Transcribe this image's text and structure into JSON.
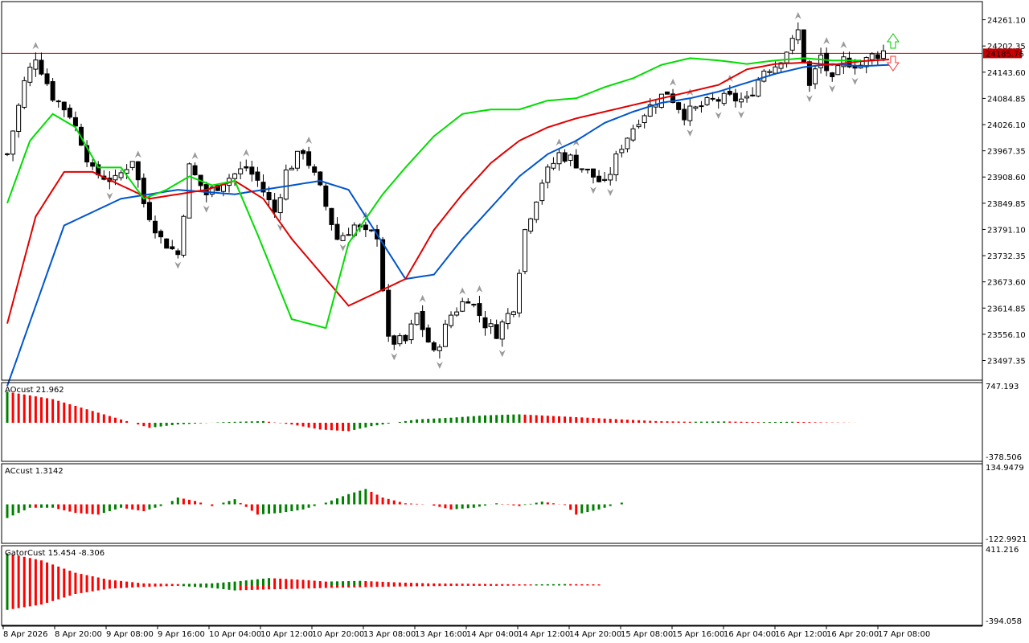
{
  "colors": {
    "bull": "#008000",
    "bear": "#ff0000",
    "jaw": "#0055cc",
    "teeth": "#e00000",
    "lips": "#00dd00",
    "price_line": "#cc0000",
    "price_label_bg": "#cc0000",
    "fractal": "#9a9a9a",
    "candle_body_bear": "#000000",
    "candle_body_bull": "#ffffff",
    "candle_border": "#000000"
  },
  "price_panel": {
    "current_price": "24185.76",
    "current_value": 24185.76,
    "y_range": [
      23455,
      24300
    ],
    "y_ticks": [
      "24261.10",
      "24202.35",
      "24143.60",
      "24084.85",
      "24026.10",
      "23967.35",
      "23908.60",
      "23849.85",
      "23791.10",
      "23732.35",
      "23673.60",
      "23614.85",
      "23556.10",
      "23497.35"
    ],
    "signals": {
      "up_arrow": "buy-signal-arrow-icon",
      "down_arrow": "sell-signal-arrow-icon"
    }
  },
  "panels": [
    {
      "label": "AOcust 21.962",
      "top_value": "747.193",
      "bottom_value": "-378.506"
    },
    {
      "label": "ACcust 1.3142",
      "top_value": "134.9479",
      "bottom_value": "-122.9921"
    },
    {
      "label": "GatorCust 15.454 -8.306",
      "top_value": "411.216",
      "bottom_value": "-394.058"
    }
  ],
  "x_axis": {
    "labels": [
      "8 Apr 2026",
      "8 Apr 20:00",
      "9 Apr 08:00",
      "9 Apr 16:00",
      "10 Apr 04:00",
      "10 Apr 12:00",
      "10 Apr 20:00",
      "13 Apr 08:00",
      "13 Apr 16:00",
      "14 Apr 04:00",
      "14 Apr 12:00",
      "14 Apr 20:00",
      "15 Apr 08:00",
      "15 Apr 16:00",
      "16 Apr 04:00",
      "16 Apr 12:00",
      "16 Apr 20:00",
      "17 Apr 08:00"
    ]
  },
  "chart_data": {
    "type": "candlestick",
    "instrument_price_axis": "price",
    "bars_count": 155,
    "anchor_closes": [
      [
        0,
        23960
      ],
      [
        3,
        24120
      ],
      [
        5,
        24180
      ],
      [
        8,
        24090
      ],
      [
        11,
        24050
      ],
      [
        13,
        23990
      ],
      [
        15,
        23920
      ],
      [
        19,
        23900
      ],
      [
        22,
        23950
      ],
      [
        24,
        23850
      ],
      [
        27,
        23770
      ],
      [
        30,
        23735
      ],
      [
        32,
        23930
      ],
      [
        35,
        23870
      ],
      [
        38,
        23900
      ],
      [
        42,
        23930
      ],
      [
        44,
        23900
      ],
      [
        47,
        23830
      ],
      [
        49,
        23920
      ],
      [
        52,
        23970
      ],
      [
        55,
        23880
      ],
      [
        58,
        23770
      ],
      [
        61,
        23800
      ],
      [
        63,
        23780
      ],
      [
        65,
        23780
      ],
      [
        67,
        23540
      ],
      [
        70,
        23540
      ],
      [
        72,
        23600
      ],
      [
        75,
        23510
      ],
      [
        78,
        23600
      ],
      [
        81,
        23640
      ],
      [
        84,
        23580
      ],
      [
        86,
        23560
      ],
      [
        89,
        23620
      ],
      [
        91,
        23790
      ],
      [
        94,
        23900
      ],
      [
        97,
        23960
      ],
      [
        99,
        23950
      ],
      [
        102,
        23920
      ],
      [
        105,
        23890
      ],
      [
        108,
        23980
      ],
      [
        111,
        24040
      ],
      [
        114,
        24080
      ],
      [
        116,
        24100
      ],
      [
        119,
        24050
      ],
      [
        121,
        24060
      ],
      [
        124,
        24080
      ],
      [
        127,
        24085
      ],
      [
        130,
        24080
      ],
      [
        133,
        24150
      ],
      [
        135,
        24160
      ],
      [
        138,
        24210
      ],
      [
        139,
        24235
      ],
      [
        141,
        24110
      ],
      [
        143,
        24180
      ],
      [
        145,
        24120
      ],
      [
        147,
        24170
      ],
      [
        150,
        24160
      ],
      [
        152,
        24180
      ],
      [
        154,
        24190
      ]
    ],
    "jaw_line": [
      [
        0,
        23440
      ],
      [
        10,
        23800
      ],
      [
        20,
        23860
      ],
      [
        30,
        23880
      ],
      [
        40,
        23870
      ],
      [
        50,
        23890
      ],
      [
        55,
        23900
      ],
      [
        60,
        23880
      ],
      [
        66,
        23760
      ],
      [
        70,
        23680
      ],
      [
        75,
        23690
      ],
      [
        80,
        23770
      ],
      [
        85,
        23840
      ],
      [
        90,
        23910
      ],
      [
        95,
        23960
      ],
      [
        100,
        23990
      ],
      [
        105,
        24030
      ],
      [
        110,
        24055
      ],
      [
        115,
        24075
      ],
      [
        120,
        24085
      ],
      [
        125,
        24100
      ],
      [
        130,
        24120
      ],
      [
        135,
        24140
      ],
      [
        140,
        24155
      ],
      [
        145,
        24162
      ],
      [
        150,
        24157
      ],
      [
        155,
        24160
      ]
    ],
    "teeth_line": [
      [
        0,
        23580
      ],
      [
        5,
        23820
      ],
      [
        10,
        23920
      ],
      [
        15,
        23920
      ],
      [
        20,
        23890
      ],
      [
        25,
        23860
      ],
      [
        30,
        23870
      ],
      [
        35,
        23880
      ],
      [
        40,
        23900
      ],
      [
        45,
        23860
      ],
      [
        50,
        23770
      ],
      [
        60,
        23620
      ],
      [
        70,
        23680
      ],
      [
        75,
        23790
      ],
      [
        80,
        23870
      ],
      [
        85,
        23940
      ],
      [
        90,
        23990
      ],
      [
        95,
        24020
      ],
      [
        100,
        24040
      ],
      [
        105,
        24055
      ],
      [
        110,
        24070
      ],
      [
        115,
        24085
      ],
      [
        120,
        24100
      ],
      [
        125,
        24115
      ],
      [
        130,
        24150
      ],
      [
        135,
        24162
      ],
      [
        140,
        24165
      ],
      [
        145,
        24160
      ],
      [
        150,
        24168
      ],
      [
        155,
        24172
      ]
    ],
    "lips_line": [
      [
        0,
        23850
      ],
      [
        4,
        23990
      ],
      [
        8,
        24050
      ],
      [
        12,
        24020
      ],
      [
        16,
        23930
      ],
      [
        20,
        23930
      ],
      [
        24,
        23860
      ],
      [
        28,
        23880
      ],
      [
        32,
        23910
      ],
      [
        36,
        23890
      ],
      [
        40,
        23900
      ],
      [
        44,
        23780
      ],
      [
        50,
        23590
      ],
      [
        56,
        23570
      ],
      [
        60,
        23760
      ],
      [
        66,
        23870
      ],
      [
        70,
        23930
      ],
      [
        75,
        24000
      ],
      [
        80,
        24050
      ],
      [
        85,
        24060
      ],
      [
        90,
        24060
      ],
      [
        95,
        24080
      ],
      [
        100,
        24085
      ],
      [
        105,
        24110
      ],
      [
        110,
        24130
      ],
      [
        115,
        24160
      ],
      [
        120,
        24175
      ],
      [
        125,
        24170
      ],
      [
        130,
        24162
      ],
      [
        135,
        24170
      ],
      [
        140,
        24175
      ],
      [
        145,
        24170
      ],
      [
        150,
        24170
      ]
    ],
    "ao_histogram": [
      [
        0,
        0.92
      ],
      [
        8,
        0.7
      ],
      [
        15,
        0.35
      ],
      [
        20,
        0.1
      ],
      [
        25,
        -0.15
      ],
      [
        30,
        -0.05
      ],
      [
        38,
        0.02
      ],
      [
        45,
        0.05
      ],
      [
        50,
        -0.05
      ],
      [
        55,
        -0.2
      ],
      [
        60,
        -0.25
      ],
      [
        64,
        -0.1
      ],
      [
        68,
        0.0
      ],
      [
        72,
        0.1
      ],
      [
        78,
        0.15
      ],
      [
        84,
        0.22
      ],
      [
        90,
        0.25
      ],
      [
        96,
        0.2
      ],
      [
        102,
        0.15
      ],
      [
        108,
        0.1
      ],
      [
        114,
        0.05
      ],
      [
        120,
        0.03
      ],
      [
        126,
        0.04
      ],
      [
        132,
        0.02
      ],
      [
        138,
        0.03
      ],
      [
        144,
        0.01
      ],
      [
        150,
        0.0
      ]
    ],
    "ac_histogram": [
      [
        0,
        -0.4
      ],
      [
        4,
        -0.1
      ],
      [
        8,
        -0.1
      ],
      [
        12,
        -0.25
      ],
      [
        16,
        -0.3
      ],
      [
        20,
        -0.1
      ],
      [
        24,
        -0.2
      ],
      [
        28,
        0.0
      ],
      [
        30,
        0.2
      ],
      [
        33,
        0.1
      ],
      [
        36,
        -0.05
      ],
      [
        40,
        0.15
      ],
      [
        44,
        -0.3
      ],
      [
        48,
        -0.25
      ],
      [
        52,
        -0.15
      ],
      [
        56,
        0.05
      ],
      [
        60,
        0.3
      ],
      [
        63,
        0.45
      ],
      [
        66,
        0.2
      ],
      [
        70,
        0.03
      ],
      [
        74,
        0.0
      ],
      [
        78,
        -0.15
      ],
      [
        82,
        -0.1
      ],
      [
        86,
        0.03
      ],
      [
        90,
        -0.05
      ],
      [
        94,
        0.08
      ],
      [
        98,
        -0.02
      ],
      [
        100,
        -0.3
      ],
      [
        104,
        -0.15
      ],
      [
        108,
        0.05
      ]
    ],
    "gator_upper": [
      [
        0,
        0.9
      ],
      [
        6,
        0.7
      ],
      [
        12,
        0.35
      ],
      [
        18,
        0.15
      ],
      [
        24,
        0.05
      ],
      [
        30,
        0.03
      ],
      [
        36,
        0.05
      ],
      [
        40,
        0.1
      ],
      [
        46,
        0.2
      ],
      [
        52,
        0.15
      ],
      [
        56,
        0.1
      ],
      [
        62,
        0.12
      ],
      [
        68,
        0.08
      ],
      [
        74,
        0.05
      ],
      [
        80,
        0.04
      ],
      [
        86,
        0.03
      ],
      [
        92,
        0.02
      ],
      [
        98,
        0.03
      ],
      [
        104,
        0.02
      ]
    ],
    "gator_lower": [
      [
        0,
        -0.7
      ],
      [
        6,
        -0.55
      ],
      [
        12,
        -0.25
      ],
      [
        18,
        -0.1
      ],
      [
        24,
        -0.05
      ],
      [
        30,
        -0.02
      ],
      [
        36,
        -0.08
      ],
      [
        40,
        -0.15
      ],
      [
        46,
        -0.12
      ],
      [
        52,
        -0.1
      ],
      [
        56,
        -0.08
      ],
      [
        62,
        -0.06
      ],
      [
        68,
        -0.04
      ],
      [
        74,
        -0.03
      ],
      [
        80,
        -0.02
      ],
      [
        86,
        -0.02
      ],
      [
        92,
        -0.01
      ],
      [
        98,
        -0.01
      ],
      [
        104,
        -0.01
      ]
    ]
  }
}
